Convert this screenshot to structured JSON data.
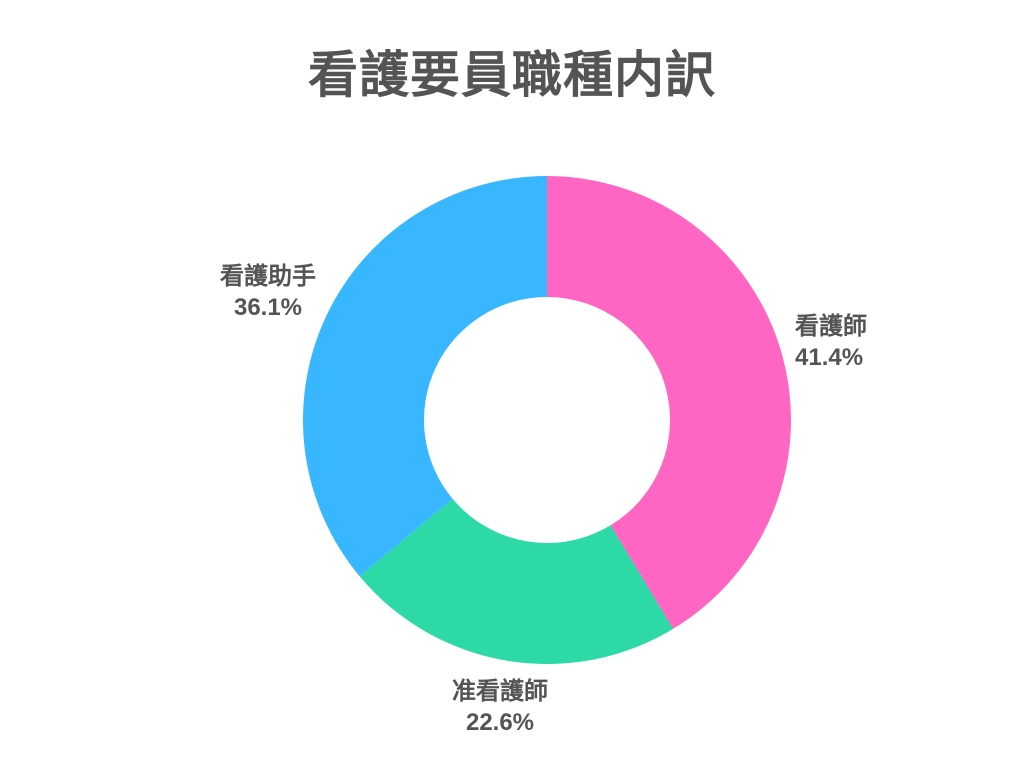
{
  "title": "看護要員職種内訳",
  "chart_data": {
    "type": "pie",
    "variant": "donut",
    "title": "看護要員職種内訳",
    "categories": [
      "看護師",
      "准看護師",
      "看護助手"
    ],
    "values": [
      41.4,
      22.6,
      36.1
    ],
    "value_labels": [
      "41.4%",
      "22.6%",
      "36.1%"
    ],
    "colors": [
      "#FF66C4",
      "#2DD9A7",
      "#38B6FF"
    ],
    "text_color": "#545454",
    "background_color": "#FFFFFF",
    "start_angle_deg": 0,
    "direction": "clockwise",
    "inner_radius_ratio": 0.504,
    "legend": "none",
    "label_position": "outside"
  }
}
